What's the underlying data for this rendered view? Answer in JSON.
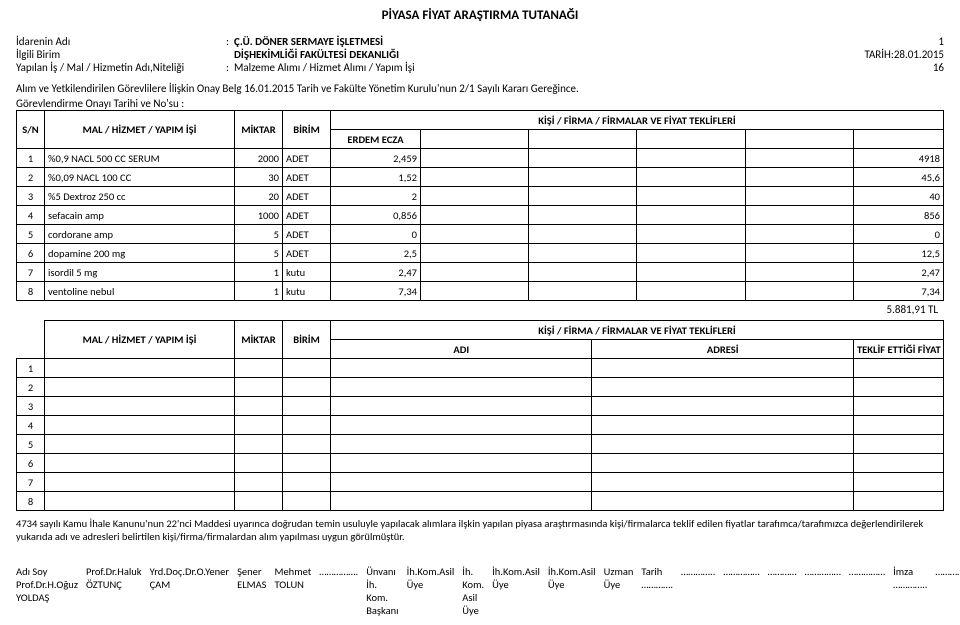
{
  "title": "PİYASA FİYAT ARAŞTIRMA TUTANAĞI",
  "header": {
    "idare_label": "İdarenin Adı",
    "idare_val": "Ç.Ü. DÖNER SERMAYE İŞLETMESİ",
    "idare_right": "1",
    "birim_label": "İlgili Birim",
    "birim_val": "DİŞHEKİMLİĞİ FAKÜLTESİ DEKANLIĞI",
    "birim_right": "TARİH:28.01.2015",
    "is_label": "Yapılan İş / Mal / Hizmetin Adı,Niteliği",
    "is_val": "Malzeme Alımı / Hizmet Alımı / Yapım İşi",
    "is_right": "16"
  },
  "onay_line": "Alım ve Yetkilendirilen Görevlilere İlişkin Onay Belg 16.01.2015 Tarih ve  Fakülte Yönetim Kurulu'nun 2/1 Sayılı Kararı Gereğince.",
  "gorev_line": "Görevlendirme Onayı Tarihi ve No'su                          :",
  "t1": {
    "sn": "S/N",
    "mal": "MAL / HİZMET / YAPIM İŞİ",
    "miktar": "MİKTAR",
    "birim": "BİRİM",
    "teklif_hdr": "KİŞİ / FİRMA / FİRMALAR VE FİYAT TEKLİFLERİ",
    "firm1": "ERDEM ECZA",
    "rows": [
      {
        "sn": "1",
        "ad": "%0,9 NACL 500 CC SERUM",
        "mk": "2000",
        "br": "ADET",
        "v": "2,459",
        "t": "4918"
      },
      {
        "sn": "2",
        "ad": "%0,09 NACL 100 CC",
        "mk": "30",
        "br": "ADET",
        "v": "1,52",
        "t": "45,6"
      },
      {
        "sn": "3",
        "ad": "%5 Dextroz 250 cc",
        "mk": "20",
        "br": "ADET",
        "v": "2",
        "t": "40"
      },
      {
        "sn": "4",
        "ad": "sefacain amp",
        "mk": "1000",
        "br": "ADET",
        "v": "0,856",
        "t": "856"
      },
      {
        "sn": "5",
        "ad": "cordorane amp",
        "mk": "5",
        "br": "ADET",
        "v": "0",
        "t": "0"
      },
      {
        "sn": "6",
        "ad": "dopamine 200 mg",
        "mk": "5",
        "br": "ADET",
        "v": "2,5",
        "t": "12,5"
      },
      {
        "sn": "7",
        "ad": "isordil 5 mg",
        "mk": "1",
        "br": "kutu",
        "v": "2,47",
        "t": "2,47"
      },
      {
        "sn": "8",
        "ad": "ventoline nebul",
        "mk": "1",
        "br": "kutu",
        "v": "7,34",
        "t": "7,34"
      }
    ],
    "total": "5.881,91 TL"
  },
  "t2": {
    "mal": "MAL / HİZMET / YAPIM İŞİ",
    "miktar": "MİKTAR",
    "birim": "BİRİM",
    "teklif_hdr": "KİŞİ / FİRMA / FİRMALAR VE FİYAT TEKLİFLERİ",
    "adi": "ADI",
    "adresi": "ADRESİ",
    "teklif": "TEKLİF ETTİĞİ FİYAT",
    "rows": [
      "1",
      "2",
      "3",
      "4",
      "5",
      "6",
      "7",
      "8"
    ]
  },
  "note": "4734 sayılı Kamu İhale Kanunu'nun 22'nci Maddesi uyarınca doğrudan temin usuluyle yapılacak alımlara ilşkin yapılan piyasa araştırmasında kişi/firmalarca teklif edilen fiyatlar tarafımca/tarafımızca değerlendirilerek yukarıda adı ve adresleri belirtilen kişi/firma/firmalardan alım yapılması uygun görülmüştür.",
  "sig": {
    "r1": [
      "Adı Soy Prof.Dr.H.Oğuz YOLDAŞ",
      "Prof.Dr.Haluk ÖZTUNÇ",
      "Yrd.Doç.Dr.O.Yener ÇAM",
      "Şener ELMAS",
      "Mehmet TOLUN",
      "……………."
    ],
    "r2": [
      "Ünvanı İh. Kom. Başkanı",
      "İh.Kom.Asil Üye",
      "İh. Kom. Asil Üye",
      "İh.Kom.Asil Üye",
      "İh.Kom.Asil Üye",
      "Uzman Üye"
    ],
    "r3": [
      "Tarih ………….",
      "…………..",
      "……………",
      "…………",
      "……………",
      "……………"
    ],
    "r4": [
      "İmza …………..",
      "…………….",
      "…………….",
      "……………",
      "……………",
      "…………."
    ]
  }
}
